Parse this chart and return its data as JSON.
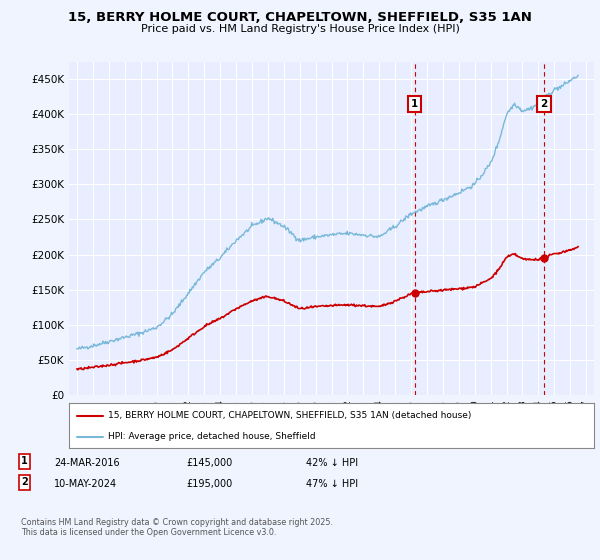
{
  "title_line1": "15, BERRY HOLME COURT, CHAPELTOWN, SHEFFIELD, S35 1AN",
  "title_line2": "Price paid vs. HM Land Registry's House Price Index (HPI)",
  "ylabel_ticks": [
    "£0",
    "£50K",
    "£100K",
    "£150K",
    "£200K",
    "£250K",
    "£300K",
    "£350K",
    "£400K",
    "£450K"
  ],
  "ytick_values": [
    0,
    50000,
    100000,
    150000,
    200000,
    250000,
    300000,
    350000,
    400000,
    450000
  ],
  "ylim": [
    0,
    475000
  ],
  "xlim_start": 1994.5,
  "xlim_end": 2027.5,
  "background_color": "#f0f4ff",
  "plot_bg_color": "#e8eeff",
  "grid_color": "#ffffff",
  "hpi_color": "#7ab8d9",
  "price_color": "#cc0000",
  "marker1_date": 2016.22,
  "marker1_price": 145000,
  "marker2_date": 2024.36,
  "marker2_price": 195000,
  "legend_line1": "15, BERRY HOLME COURT, CHAPELTOWN, SHEFFIELD, S35 1AN (detached house)",
  "legend_line2": "HPI: Average price, detached house, Sheffield",
  "footer": "Contains HM Land Registry data © Crown copyright and database right 2025.\nThis data is licensed under the Open Government Licence v3.0."
}
